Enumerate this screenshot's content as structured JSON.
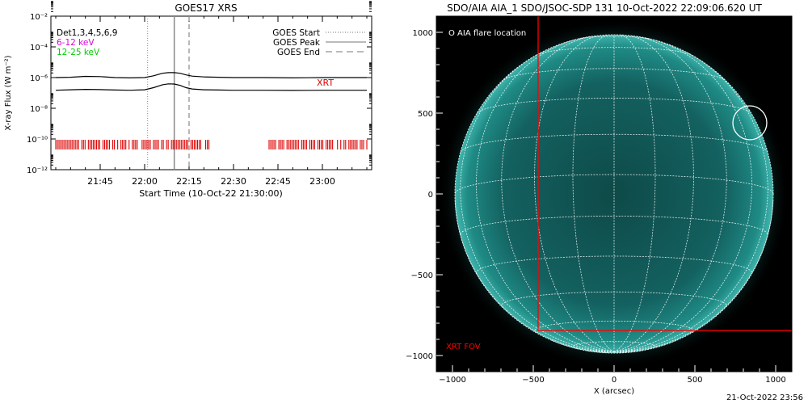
{
  "chart_data": [
    {
      "type": "line",
      "title": "GOES17 XRS",
      "xlabel": "Start Time (10-Oct-22 21:30:00)",
      "ylabel": "X-ray Flux (W m⁻²)",
      "x_tick_labels": [
        "21:45",
        "22:00",
        "22:15",
        "22:30",
        "22:45",
        "23:00"
      ],
      "x_tick_minutes": [
        15,
        30,
        45,
        60,
        75,
        90
      ],
      "xlim_minutes": [
        0,
        105
      ],
      "y_scale": "log",
      "ylim": [
        1e-12,
        0.01
      ],
      "y_tick_labels": [
        "10⁻¹²",
        "10⁻¹⁰",
        "10⁻⁸",
        "10⁻⁶",
        "10⁻⁴",
        "10⁻²"
      ],
      "y_tick_exponents": [
        -12,
        -10,
        -8,
        -6,
        -4,
        -2
      ],
      "legend_left": [
        {
          "text": "Det1,3,4,5,6,9",
          "color": "#000000"
        },
        {
          "text": "6-12 keV",
          "color": "#dd00dd"
        },
        {
          "text": "12-25 keV",
          "color": "#00cc00"
        }
      ],
      "legend_right": [
        {
          "text": "GOES Start",
          "style": "dotted"
        },
        {
          "text": "GOES Peak",
          "style": "solid"
        },
        {
          "text": "GOES End",
          "style": "dashed"
        }
      ],
      "xrt_label": "XRT",
      "xrt_color": "#dd0000",
      "goes_events_minutes": {
        "start": 31,
        "peak": 40,
        "end": 45
      },
      "xrt_coverage_minutes": [
        [
          0,
          52
        ],
        [
          72,
          105
        ]
      ],
      "series": [
        {
          "style": "solid",
          "x_minutes": [
            0,
            5,
            10,
            15,
            20,
            25,
            30,
            33,
            36,
            38,
            40,
            42,
            44,
            46,
            50,
            55,
            60,
            70,
            80,
            90,
            100,
            105
          ],
          "y": [
            1e-06,
            1.05e-06,
            1.2e-06,
            1.15e-06,
            1e-06,
            9.5e-07,
            1e-06,
            1.3e-06,
            1.9e-06,
            2.1e-06,
            2.1e-06,
            1.9e-06,
            1.5e-06,
            1.25e-06,
            1.1e-06,
            1.05e-06,
            1e-06,
            1e-06,
            9.5e-07,
            1e-06,
            1e-06,
            1e-06
          ]
        },
        {
          "style": "solid",
          "x_minutes": [
            0,
            5,
            10,
            15,
            20,
            25,
            30,
            33,
            36,
            38,
            40,
            42,
            44,
            46,
            50,
            55,
            60,
            70,
            80,
            90,
            100,
            105
          ],
          "y": [
            1.5e-07,
            1.6e-07,
            1.7e-07,
            1.65e-07,
            1.55e-07,
            1.5e-07,
            1.6e-07,
            2.2e-07,
            3.4e-07,
            3.9e-07,
            3.8e-07,
            3.1e-07,
            2.2e-07,
            1.8e-07,
            1.6e-07,
            1.55e-07,
            1.5e-07,
            1.5e-07,
            1.45e-07,
            1.5e-07,
            1.5e-07,
            1.5e-07
          ]
        }
      ]
    },
    {
      "type": "scatter",
      "title": "SDO/AIA AIA_1 SDO/JSOC-SDP 131 10-Oct-2022 22:09:06.620 UT",
      "xlabel": "X (arcsec)",
      "ylabel": "",
      "x_tick_labels": [
        "−1000",
        "−500",
        "0",
        "500",
        "1000"
      ],
      "x_ticks": [
        -1000,
        -500,
        0,
        500,
        1000
      ],
      "y_tick_labels": [
        "1000",
        "500",
        "0",
        "−500",
        "−1000"
      ],
      "y_ticks": [
        1000,
        500,
        0,
        -500,
        -1000
      ],
      "xlim": [
        -1100,
        1100
      ],
      "ylim": [
        -1100,
        1100
      ],
      "solar_radius_arcsec": 985,
      "flare_location_label": "O AIA flare location",
      "flare_location_arcsec": {
        "x": 840,
        "y": 440
      },
      "xrt_fov_label": "XRT FOV",
      "xrt_fov_arcsec": {
        "x_min": -470,
        "x_max": 1100,
        "y_min": -845,
        "y_max": 1100
      },
      "xrt_fov_color": "#ff0000",
      "disk_color": "#1f8a84",
      "background_color": "#000000"
    }
  ],
  "footer": {
    "timestamp": "21-Oct-2022 23:56"
  }
}
